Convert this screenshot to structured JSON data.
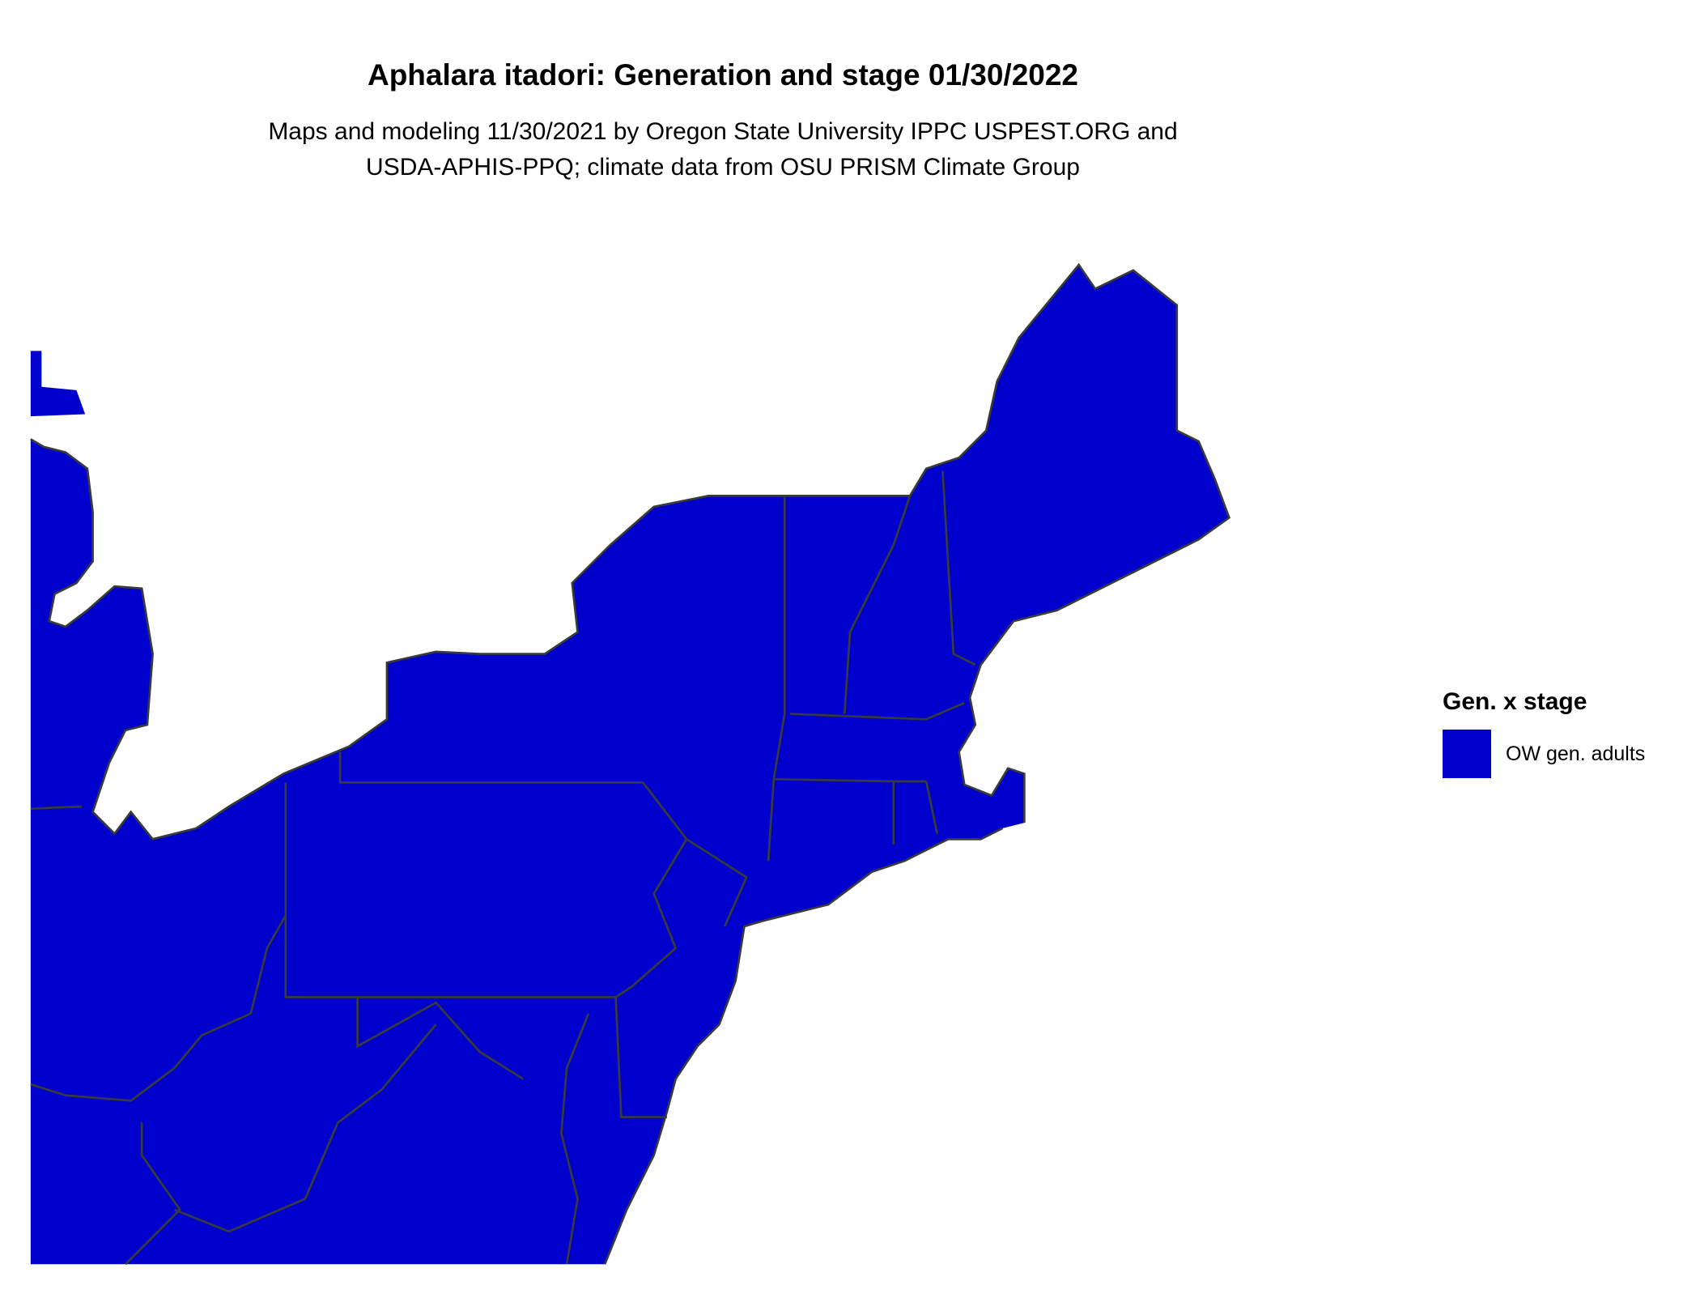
{
  "title": "Aphalara itadori: Generation and stage 01/30/2022",
  "subtitle_lines": [
    "Maps and modeling 11/30/2021 by Oregon State University IPPC USPEST.ORG and",
    "USDA-APHIS-PPQ; climate data from OSU PRISM Climate Group"
  ],
  "legend": {
    "title": "Gen. x stage",
    "items": [
      {
        "label": "OW gen. adults",
        "color": "#0000CC"
      }
    ]
  },
  "map": {
    "region": "Northeastern United States",
    "fill_color": "#0000CC",
    "border_color": "#3a3a3a",
    "category_shown": "OW gen. adults"
  }
}
